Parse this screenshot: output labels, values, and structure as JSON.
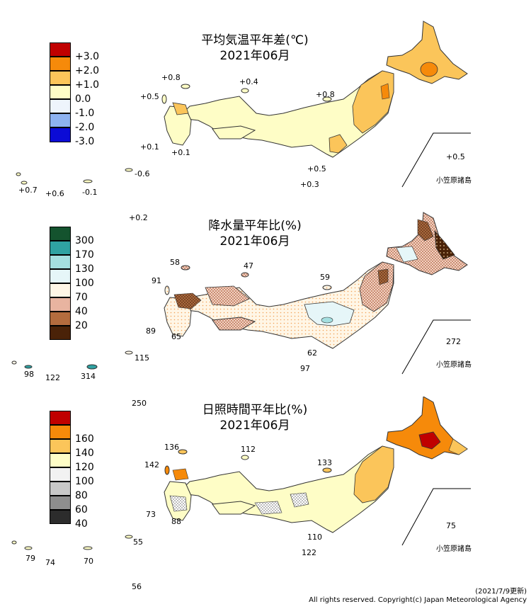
{
  "colors": {
    "temp": [
      "#c00000",
      "#f68a0a",
      "#fbc55a",
      "#fefdc6",
      "#dbe9fa",
      "#7aa6f2",
      "#0b0bd6"
    ],
    "precip": [
      "#14532e",
      "#2fa2a2",
      "#a4dfe0",
      "#e6f6f8",
      "#fff6e6",
      "#e8b4a0",
      "#b46c3e",
      "#4a2208"
    ],
    "sun": [
      "#c00000",
      "#f68a0a",
      "#fbc55a",
      "#fefdc6",
      "#ffffff",
      "#d8d8d8",
      "#9a9a9a",
      "#2c2c2c"
    ]
  },
  "panels": [
    {
      "id": "temp",
      "title_line1": "平均気温平年差(℃)",
      "title_line2": "2021年06月",
      "legend": [
        "+3.0",
        "+2.0",
        "+1.0",
        "0.0",
        "-1.0",
        "-2.0",
        "-3.0"
      ],
      "values": {
        "sado": "+0.8",
        "oki": "+0.4",
        "tsushima_a": "+0.8",
        "tsushima_b": "+0.5",
        "goto": "+0.1",
        "koshiki": "+0.1",
        "izu_a": "+0.5",
        "izu_b": "+0.3",
        "ryukyu_a": "+0.7",
        "ryukyu_b": "+0.6",
        "ryukyu_c": "-0.1",
        "ryukyu_d": "-0.6",
        "daito": "+0.2",
        "ogasawara": "+0.5"
      },
      "ogasawara_label": "小笠原諸島"
    },
    {
      "id": "precip",
      "title_line1": "降水量平年比(%)",
      "title_line2": "2021年06月",
      "legend": [
        "300",
        "170",
        "130",
        "100",
        "70",
        "40",
        "20"
      ],
      "values": {
        "sado": "58",
        "oki": "47",
        "tsushima_a": "59",
        "tsushima_b": "91",
        "goto": "89",
        "koshiki": "65",
        "izu_a": "62",
        "izu_b": "97",
        "ryukyu_a": "98",
        "ryukyu_b": "122",
        "ryukyu_c": "314",
        "ryukyu_d": "115",
        "daito": "250",
        "ogasawara": "272"
      },
      "ogasawara_label": "小笠原諸島"
    },
    {
      "id": "sun",
      "title_line1": "日照時間平年比(%)",
      "title_line2": "2021年06月",
      "legend": [
        "160",
        "140",
        "120",
        "100",
        "80",
        "60",
        "40"
      ],
      "values": {
        "sado": "136",
        "oki": "112",
        "tsushima_a": "133",
        "tsushima_b": "142",
        "goto": "73",
        "koshiki": "88",
        "izu_a": "110",
        "izu_b": "122",
        "ryukyu_a": "79",
        "ryukyu_b": "74",
        "ryukyu_c": "70",
        "ryukyu_d": "55",
        "daito": "56",
        "ogasawara": "75"
      },
      "ogasawara_label": "小笠原諸島"
    }
  ],
  "footer": {
    "line1": "(2021/7/9更新)",
    "line2": "All rights reserved. Copyright(c) Japan Meteorological Agency"
  }
}
